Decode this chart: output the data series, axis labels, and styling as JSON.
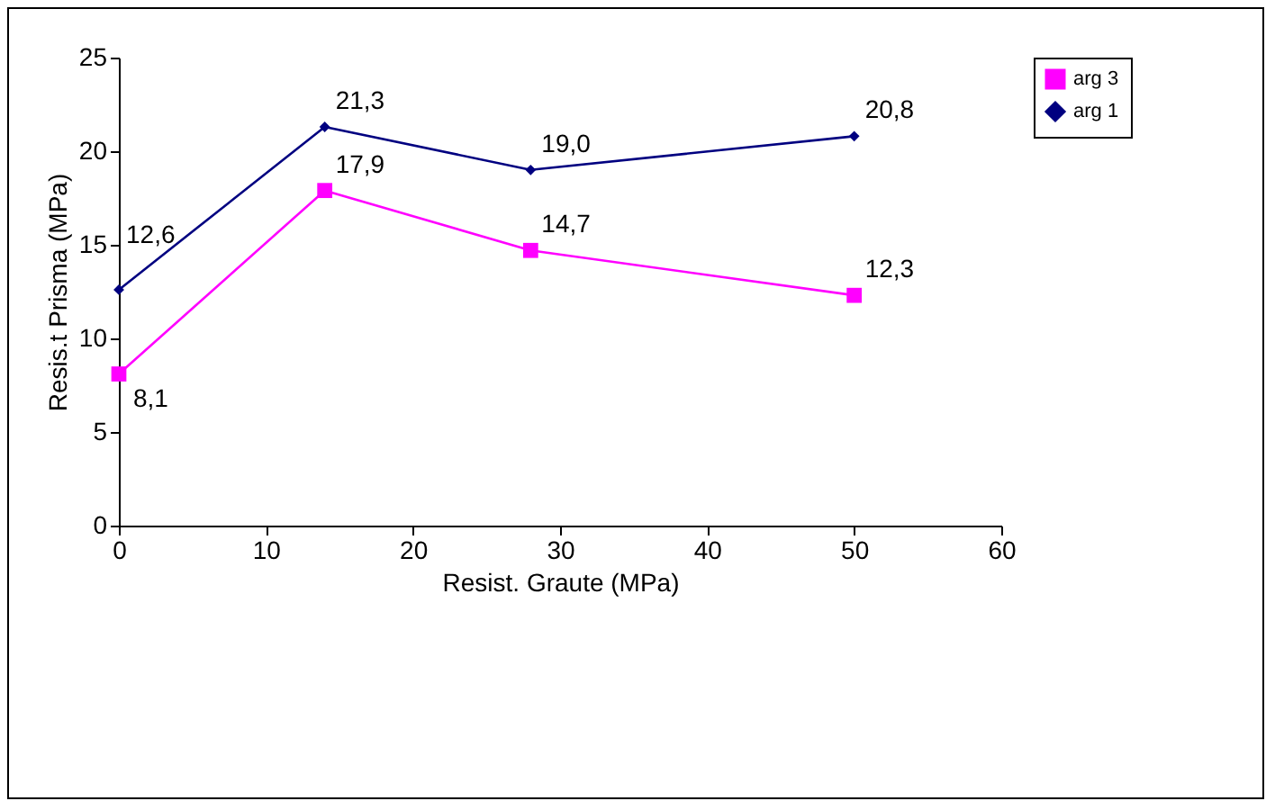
{
  "chart_data": {
    "type": "line",
    "xlabel": "Resist. Graute (MPa)",
    "ylabel": "Resis.t Prisma (MPa)",
    "x": [
      0,
      14,
      28,
      50
    ],
    "series": [
      {
        "name": "arg 3",
        "color": "#ff00ff",
        "marker": "square",
        "values": [
          8.1,
          17.9,
          14.7,
          12.3
        ],
        "value_labels": [
          "8,1",
          "17,9",
          "14,7",
          "12,3"
        ]
      },
      {
        "name": "arg 1",
        "color": "#000080",
        "marker": "diamond",
        "values": [
          12.6,
          21.3,
          19.0,
          20.8
        ],
        "value_labels": [
          "12,6",
          "21,3",
          "19,0",
          "20,8"
        ]
      }
    ],
    "xlim": [
      0,
      60
    ],
    "xticks": [
      0,
      10,
      20,
      30,
      40,
      50,
      60
    ],
    "ylim": [
      0,
      25
    ],
    "yticks": [
      0,
      5,
      10,
      15,
      20,
      25
    ],
    "grid": false,
    "legend": "right"
  }
}
